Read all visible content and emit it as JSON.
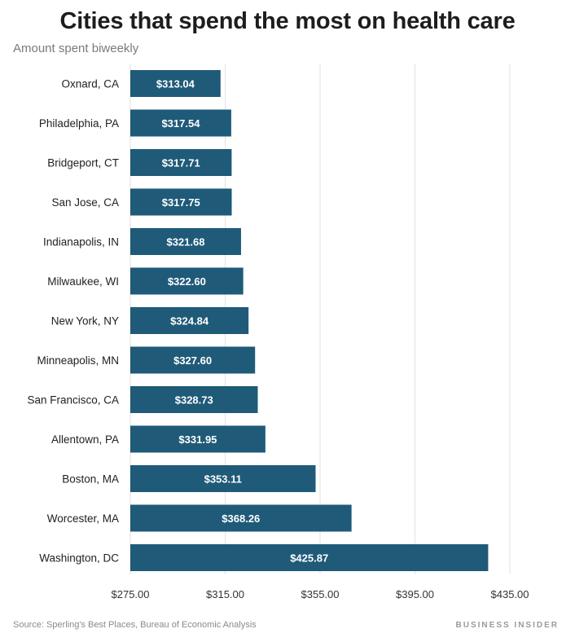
{
  "chart_data": {
    "type": "bar",
    "orientation": "horizontal",
    "title": "Cities that spend the most on health care",
    "subtitle": "Amount spent biweekly",
    "categories": [
      "Oxnard, CA",
      "Philadelphia, PA",
      "Bridgeport, CT",
      "San Jose, CA",
      "Indianapolis, IN",
      "Milwaukee, WI",
      "New York, NY",
      "Minneapolis, MN",
      "San Francisco, CA",
      "Allentown, PA",
      "Boston, MA",
      "Worcester, MA",
      "Washington, DC"
    ],
    "values": [
      313.04,
      317.54,
      317.71,
      317.75,
      321.68,
      322.6,
      324.84,
      327.6,
      328.73,
      331.95,
      353.11,
      368.26,
      425.87
    ],
    "value_labels": [
      "$313.04",
      "$317.54",
      "$317.71",
      "$317.75",
      "$321.68",
      "$322.60",
      "$324.84",
      "$327.60",
      "$328.73",
      "$331.95",
      "$353.11",
      "$368.26",
      "$425.87"
    ],
    "xlim": [
      275,
      435
    ],
    "xticks": [
      275,
      315,
      355,
      395,
      435
    ],
    "xtick_labels": [
      "$275.00",
      "$315.00",
      "$355.00",
      "$395.00",
      "$435.00"
    ],
    "grid": true,
    "bar_color": "#1f5a79",
    "label_color": "#ffffff",
    "source": "Source: Sperling's Best Places, Bureau of Economic Analysis",
    "brand": "BUSINESS INSIDER"
  }
}
